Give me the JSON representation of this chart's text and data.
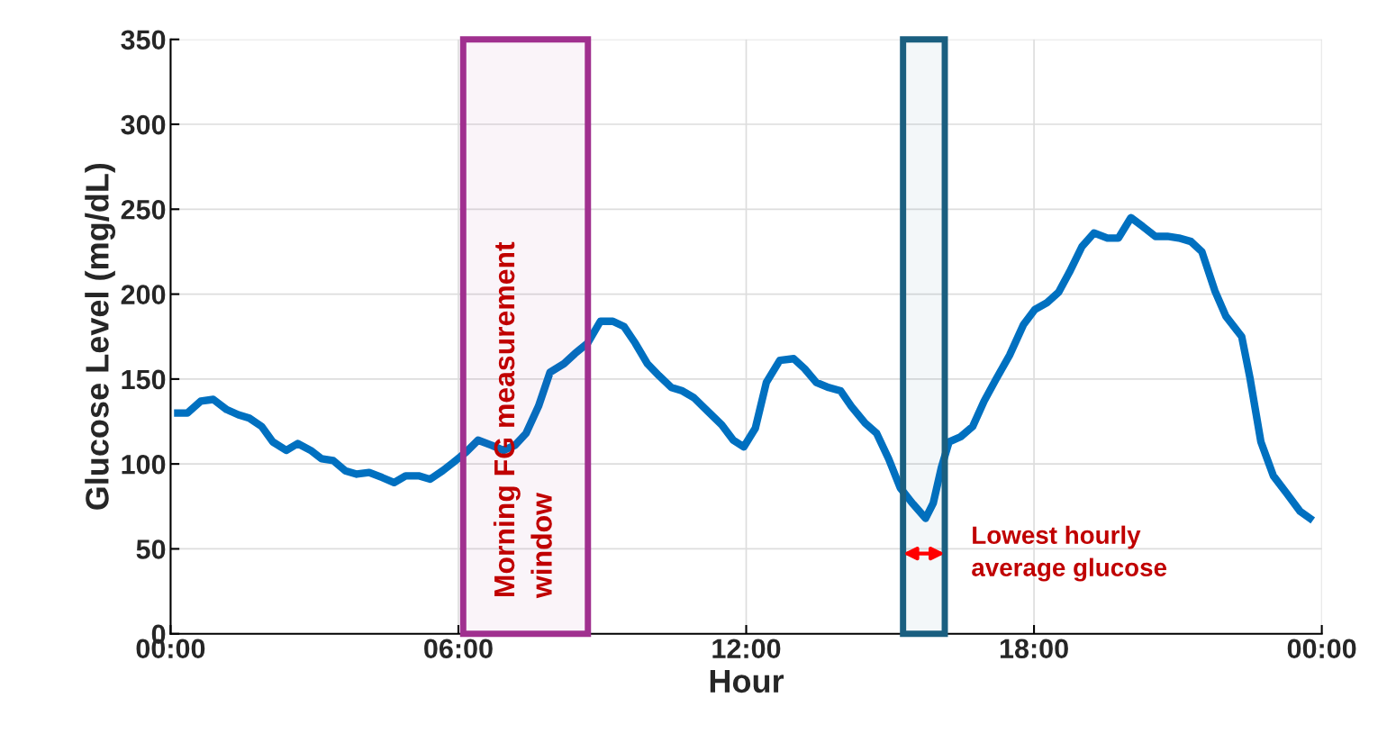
{
  "chart_data": {
    "type": "line",
    "xlabel": "Hour",
    "ylabel": "Glucose Level (mg/dL)",
    "x": [
      0.15,
      0.35,
      0.63,
      0.89,
      1.17,
      1.41,
      1.64,
      1.9,
      2.13,
      2.41,
      2.65,
      2.92,
      3.15,
      3.39,
      3.64,
      3.88,
      4.14,
      4.41,
      4.66,
      4.9,
      5.17,
      5.41,
      5.67,
      5.9,
      6.16,
      6.41,
      6.69,
      6.94,
      7.18,
      7.41,
      7.67,
      7.91,
      8.2,
      8.43,
      8.69,
      8.96,
      9.22,
      9.45,
      9.69,
      9.94,
      10.18,
      10.44,
      10.67,
      10.91,
      11.2,
      11.49,
      11.73,
      11.95,
      12.19,
      12.42,
      12.7,
      12.99,
      13.22,
      13.46,
      13.72,
      13.97,
      14.19,
      14.48,
      14.72,
      14.97,
      15.21,
      15.46,
      15.74,
      15.9,
      16.07,
      16.23,
      16.47,
      16.72,
      16.96,
      17.21,
      17.49,
      17.78,
      18.02,
      18.27,
      18.51,
      18.74,
      19.0,
      19.25,
      19.53,
      19.76,
      20.02,
      20.26,
      20.53,
      20.78,
      21.02,
      21.27,
      21.5,
      21.77,
      22.0,
      22.33,
      22.5,
      22.73,
      22.99,
      23.26,
      23.55,
      23.75
    ],
    "series": [
      {
        "color": "#0070c0",
        "values": [
          130,
          130,
          137,
          138,
          132,
          129,
          127,
          122,
          113,
          108,
          112,
          108,
          103,
          102,
          96,
          94,
          95,
          92,
          89,
          93,
          93,
          91,
          96,
          101,
          107,
          114,
          111,
          108,
          111,
          118,
          134,
          154,
          159,
          165,
          171,
          184,
          184,
          181,
          171,
          159,
          152,
          145,
          143,
          139,
          131,
          123,
          114,
          110,
          121,
          148,
          161,
          162,
          156,
          148,
          145,
          143,
          134,
          124,
          118,
          103,
          86,
          77,
          68,
          77,
          98,
          113,
          116,
          122,
          137,
          150,
          164,
          182,
          191,
          195,
          201,
          213,
          228,
          236,
          233,
          233,
          245,
          240,
          234,
          234,
          233,
          231,
          225,
          202,
          187,
          175,
          151,
          113,
          93,
          83,
          72,
          68
        ]
      }
    ],
    "xlim": [
      0,
      24
    ],
    "xticks": [
      {
        "value": 0,
        "label": "00:00"
      },
      {
        "value": 6,
        "label": "06:00"
      },
      {
        "value": 12,
        "label": "12:00"
      },
      {
        "value": 18,
        "label": "18:00"
      },
      {
        "value": 24,
        "label": "00:00"
      }
    ],
    "ylim": [
      0,
      350
    ],
    "yticks": [
      0,
      50,
      100,
      150,
      200,
      250,
      300,
      350
    ],
    "grid": true,
    "line_style": "solid",
    "marker": "none",
    "bands": [
      {
        "axis": "x",
        "from": 6.1,
        "to": 8.7,
        "label": "Morning FG measurement window",
        "color": "#a0308f"
      },
      {
        "axis": "x",
        "from": 15.27,
        "to": 16.14,
        "label": "Lowest hourly average glucose",
        "color": "#1a5f80"
      }
    ]
  }
}
